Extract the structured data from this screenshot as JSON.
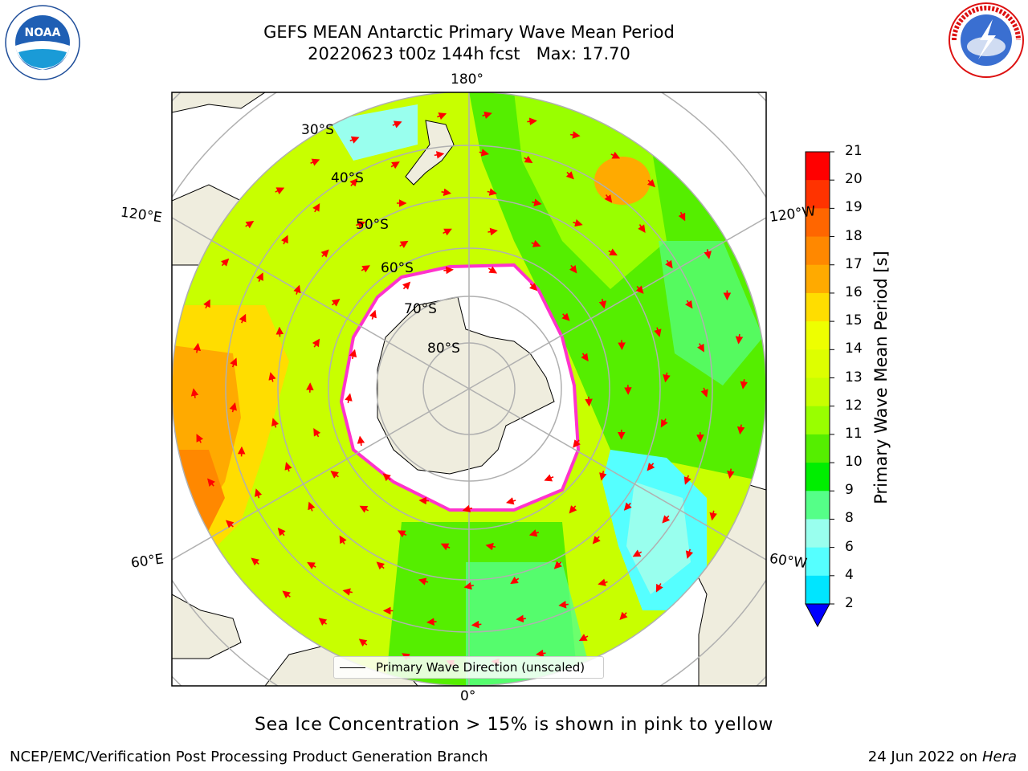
{
  "title": {
    "line1": "GEFS MEAN Antarctic Primary Wave Mean Period",
    "line2": "20220623 t00z 144h fcst   Max: 17.70"
  },
  "logos": {
    "left_icon": "noaa-logo",
    "left_text": "NOAA",
    "left_ring_text": "NATIONAL OCEANIC AND ATMOSPHERIC ADMINISTRATION · U.S. DEPARTMENT OF COMMERCE",
    "right_icon": "nws-logo",
    "right_ring_text": "NATIONAL WEATHER SERVICE"
  },
  "map": {
    "projection": "south-polar-stereographic",
    "longitude_labels": {
      "top": "180°",
      "bottom": "0°",
      "left_upper": "120°E",
      "left_lower": "60°E",
      "right_upper": "120°W",
      "right_lower": "60°W"
    },
    "latitude_labels": [
      "30°S",
      "40°S",
      "50°S",
      "60°S",
      "70°S",
      "80°S"
    ],
    "colors": {
      "land": "#efedde",
      "grid": "#b0b0b0",
      "arrow": "#ff0000",
      "sea_ice_edge": "#ff33cc"
    }
  },
  "colorbar": {
    "label": "Primary Wave Mean Period [s]",
    "ticks": [
      "21",
      "20",
      "19",
      "18",
      "17",
      "16",
      "15",
      "14",
      "13",
      "12",
      "11",
      "10",
      "9",
      "8",
      "6",
      "4",
      "2"
    ],
    "colors": [
      "#ff0000",
      "#ff3300",
      "#ff6600",
      "#ff8800",
      "#ffaa00",
      "#ffdd00",
      "#eeff00",
      "#ddff00",
      "#c8ff00",
      "#99ff00",
      "#55ee00",
      "#00ee00",
      "#55ff88",
      "#99ffee",
      "#55ffff",
      "#00e5ff",
      "#00aaff",
      "#0066ff"
    ],
    "underflow_color": "#0000ff"
  },
  "legend": {
    "label": "Primary Wave Direction (unscaled)"
  },
  "ice_note": "Sea Ice Concentration > 15% is shown in pink to yellow",
  "footer": {
    "left": "NCEP/EMC/Verification Post Processing Product Generation Branch",
    "right_date": "24 Jun 2022 on",
    "right_machine": "Hera"
  }
}
